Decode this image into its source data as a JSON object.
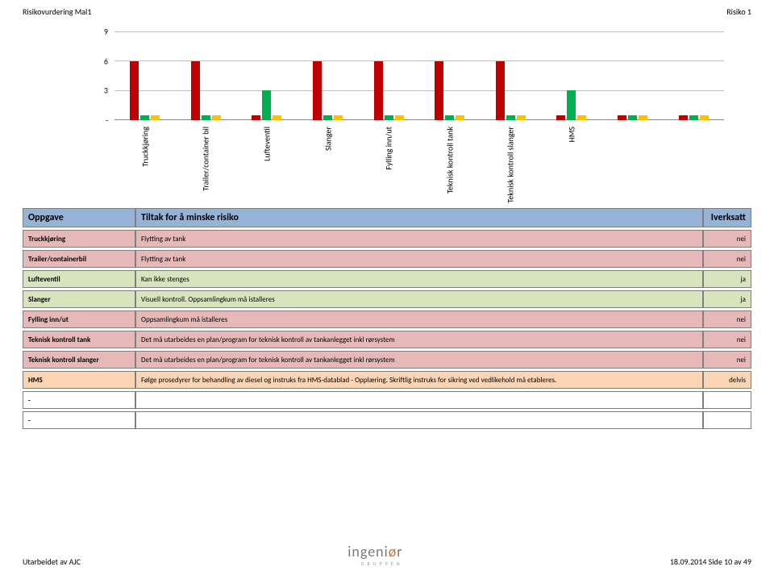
{
  "header": {
    "left": "Risikovurdering Mal1",
    "right": "Risiko 1"
  },
  "chart": {
    "type": "bar",
    "y_max": 9,
    "y_ticks": [
      0,
      3,
      6,
      9
    ],
    "y_tick_labels": [
      "-",
      "3",
      "6",
      "9"
    ],
    "grid_color": "#bfbfbf",
    "axis_color": "#888888",
    "label_fontsize": 10,
    "series_colors": {
      "red": "#c00000",
      "green": "#00b050",
      "yellow": "#ffc000"
    },
    "categories": [
      {
        "label": "Truckkjøring",
        "bars": [
          {
            "v": 6,
            "c": "#c00000"
          },
          {
            "v": 0.5,
            "c": "#00b050"
          },
          {
            "v": 0.5,
            "c": "#ffc000"
          }
        ]
      },
      {
        "label": "Trailer/container bil",
        "bars": [
          {
            "v": 6,
            "c": "#c00000"
          },
          {
            "v": 0.5,
            "c": "#00b050"
          },
          {
            "v": 0.5,
            "c": "#ffc000"
          }
        ]
      },
      {
        "label": "Lufteventil",
        "bars": [
          {
            "v": 0.5,
            "c": "#c00000"
          },
          {
            "v": 3,
            "c": "#00b050"
          },
          {
            "v": 0.5,
            "c": "#ffc000"
          }
        ]
      },
      {
        "label": "Slanger",
        "bars": [
          {
            "v": 6,
            "c": "#c00000"
          },
          {
            "v": 0.5,
            "c": "#00b050"
          },
          {
            "v": 0.5,
            "c": "#ffc000"
          }
        ]
      },
      {
        "label": "Fylling inn/ut",
        "bars": [
          {
            "v": 6,
            "c": "#c00000"
          },
          {
            "v": 0.5,
            "c": "#00b050"
          },
          {
            "v": 0.5,
            "c": "#ffc000"
          }
        ]
      },
      {
        "label": "Teknisk kontroll tank",
        "bars": [
          {
            "v": 6,
            "c": "#c00000"
          },
          {
            "v": 0.5,
            "c": "#00b050"
          },
          {
            "v": 0.5,
            "c": "#ffc000"
          }
        ]
      },
      {
        "label": "Teknisk kontroll slanger",
        "bars": [
          {
            "v": 6,
            "c": "#c00000"
          },
          {
            "v": 0.5,
            "c": "#00b050"
          },
          {
            "v": 0.5,
            "c": "#ffc000"
          }
        ]
      },
      {
        "label": "HMS",
        "bars": [
          {
            "v": 0.5,
            "c": "#c00000"
          },
          {
            "v": 3,
            "c": "#00b050"
          },
          {
            "v": 0.5,
            "c": "#ffc000"
          }
        ]
      },
      {
        "label": "",
        "bars": [
          {
            "v": 0.5,
            "c": "#c00000"
          },
          {
            "v": 0.5,
            "c": "#00b050"
          },
          {
            "v": 0.5,
            "c": "#ffc000"
          }
        ]
      },
      {
        "label": "",
        "bars": [
          {
            "v": 0.5,
            "c": "#c00000"
          },
          {
            "v": 0.5,
            "c": "#00b050"
          },
          {
            "v": 0.5,
            "c": "#ffc000"
          }
        ]
      }
    ]
  },
  "table": {
    "headers": {
      "task": "Oppgave",
      "action": "Tiltak for å minske risiko",
      "status": "Iverksatt"
    },
    "row_colors": {
      "nei": "#e6b9b8",
      "ja": "#d7e4bd",
      "delvis": "#fcd5b5",
      "blank": "#ffffff"
    },
    "rows": [
      {
        "task": "Truckkjøring",
        "action": "Flytting av tank",
        "status": "nei"
      },
      {
        "task": "Trailer/containerbil",
        "action": "Flytting av tank",
        "status": "nei"
      },
      {
        "task": "Lufteventil",
        "action": "Kan ikke stenges",
        "status": "ja"
      },
      {
        "task": "Slanger",
        "action": "Visuell kontroll. Oppsamlingkum må istalleres",
        "status": "ja"
      },
      {
        "task": "Fylling inn/ut",
        "action": "Oppsamlingkum må istalleres",
        "status": "nei"
      },
      {
        "task": "Teknisk kontroll tank",
        "action": "Det må utarbeides en plan/program for teknisk kontroll av tankanlegget inkl rørsystem",
        "status": "nei"
      },
      {
        "task": "Teknisk kontroll slanger",
        "action": "Det må utarbeides en plan/program for teknisk kontroll av tankanlegget inkl rørsystem",
        "status": "nei"
      },
      {
        "task": "HMS",
        "action": "Følge prosedyrer for behandling av diesel og instruks fra HMS-datablad - Opplæring. Skriftlig instruks for sikring ved vedlikehold må etableres.",
        "status": "delvis"
      },
      {
        "task": "-",
        "action": "",
        "status": ""
      },
      {
        "task": "-",
        "action": "",
        "status": ""
      }
    ]
  },
  "footer": {
    "left": "Utarbeidet av AJC",
    "right": "18.09.2014 Side 10 av 49",
    "logo_main_pre": "ingeni",
    "logo_main_accent": "ø",
    "logo_main_post": "r",
    "logo_sub": "GRUPPEN"
  }
}
